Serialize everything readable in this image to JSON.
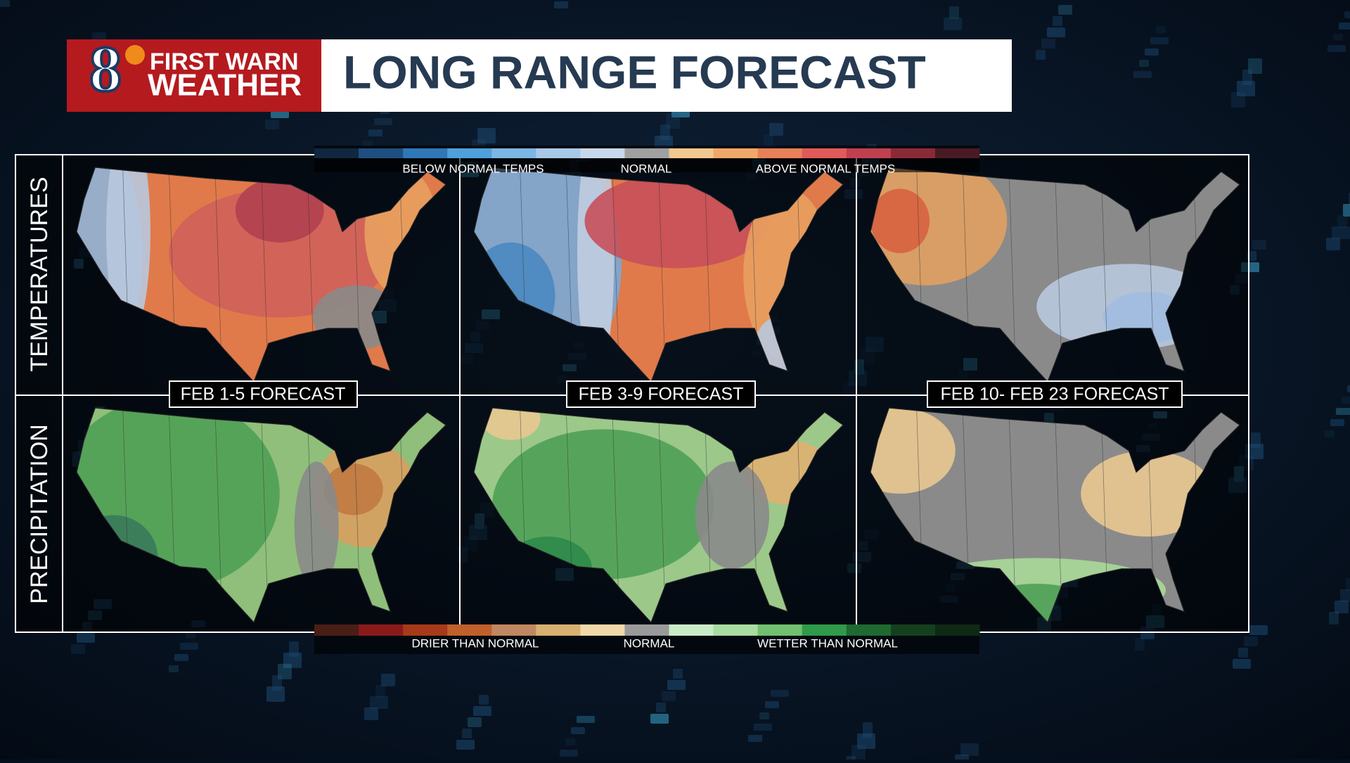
{
  "header": {
    "logo_number": "8",
    "logo_line1": "FIRST WARN",
    "logo_line2": "WEATHER",
    "title": "LONG RANGE FORECAST"
  },
  "temperature_legend": {
    "labels": [
      "BELOW NORMAL TEMPS",
      "NORMAL",
      "ABOVE NORMAL TEMPS"
    ],
    "swatches": [
      "#0f2740",
      "#1f4f80",
      "#2f78b8",
      "#4fa0dc",
      "#7cb6e4",
      "#a8c8e8",
      "#c8d8ec",
      "#a0a0a0",
      "#f0c890",
      "#f0a868",
      "#e88058",
      "#e05a5a",
      "#c04050",
      "#8a2a38",
      "#4a1a22"
    ]
  },
  "precipitation_legend": {
    "labels": [
      "DRIER THAN NORMAL",
      "NORMAL",
      "WETTER THAN NORMAL"
    ],
    "swatches": [
      "#4a1e16",
      "#8a1a1a",
      "#a83a1a",
      "#c0602a",
      "#c08860",
      "#d8b070",
      "#f0d8a8",
      "#9a9a9a",
      "#c8ecc8",
      "#a8dca0",
      "#70c070",
      "#2f9a4a",
      "#1f6a30",
      "#14401e",
      "#0e2a14"
    ]
  },
  "rows": [
    "TEMPERATURES",
    "PRECIPITATION"
  ],
  "periods": [
    "FEB 1-5 FORECAST",
    "FEB 3-9 FORECAST",
    "FEB 10- FEB 23 FORECAST"
  ]
}
